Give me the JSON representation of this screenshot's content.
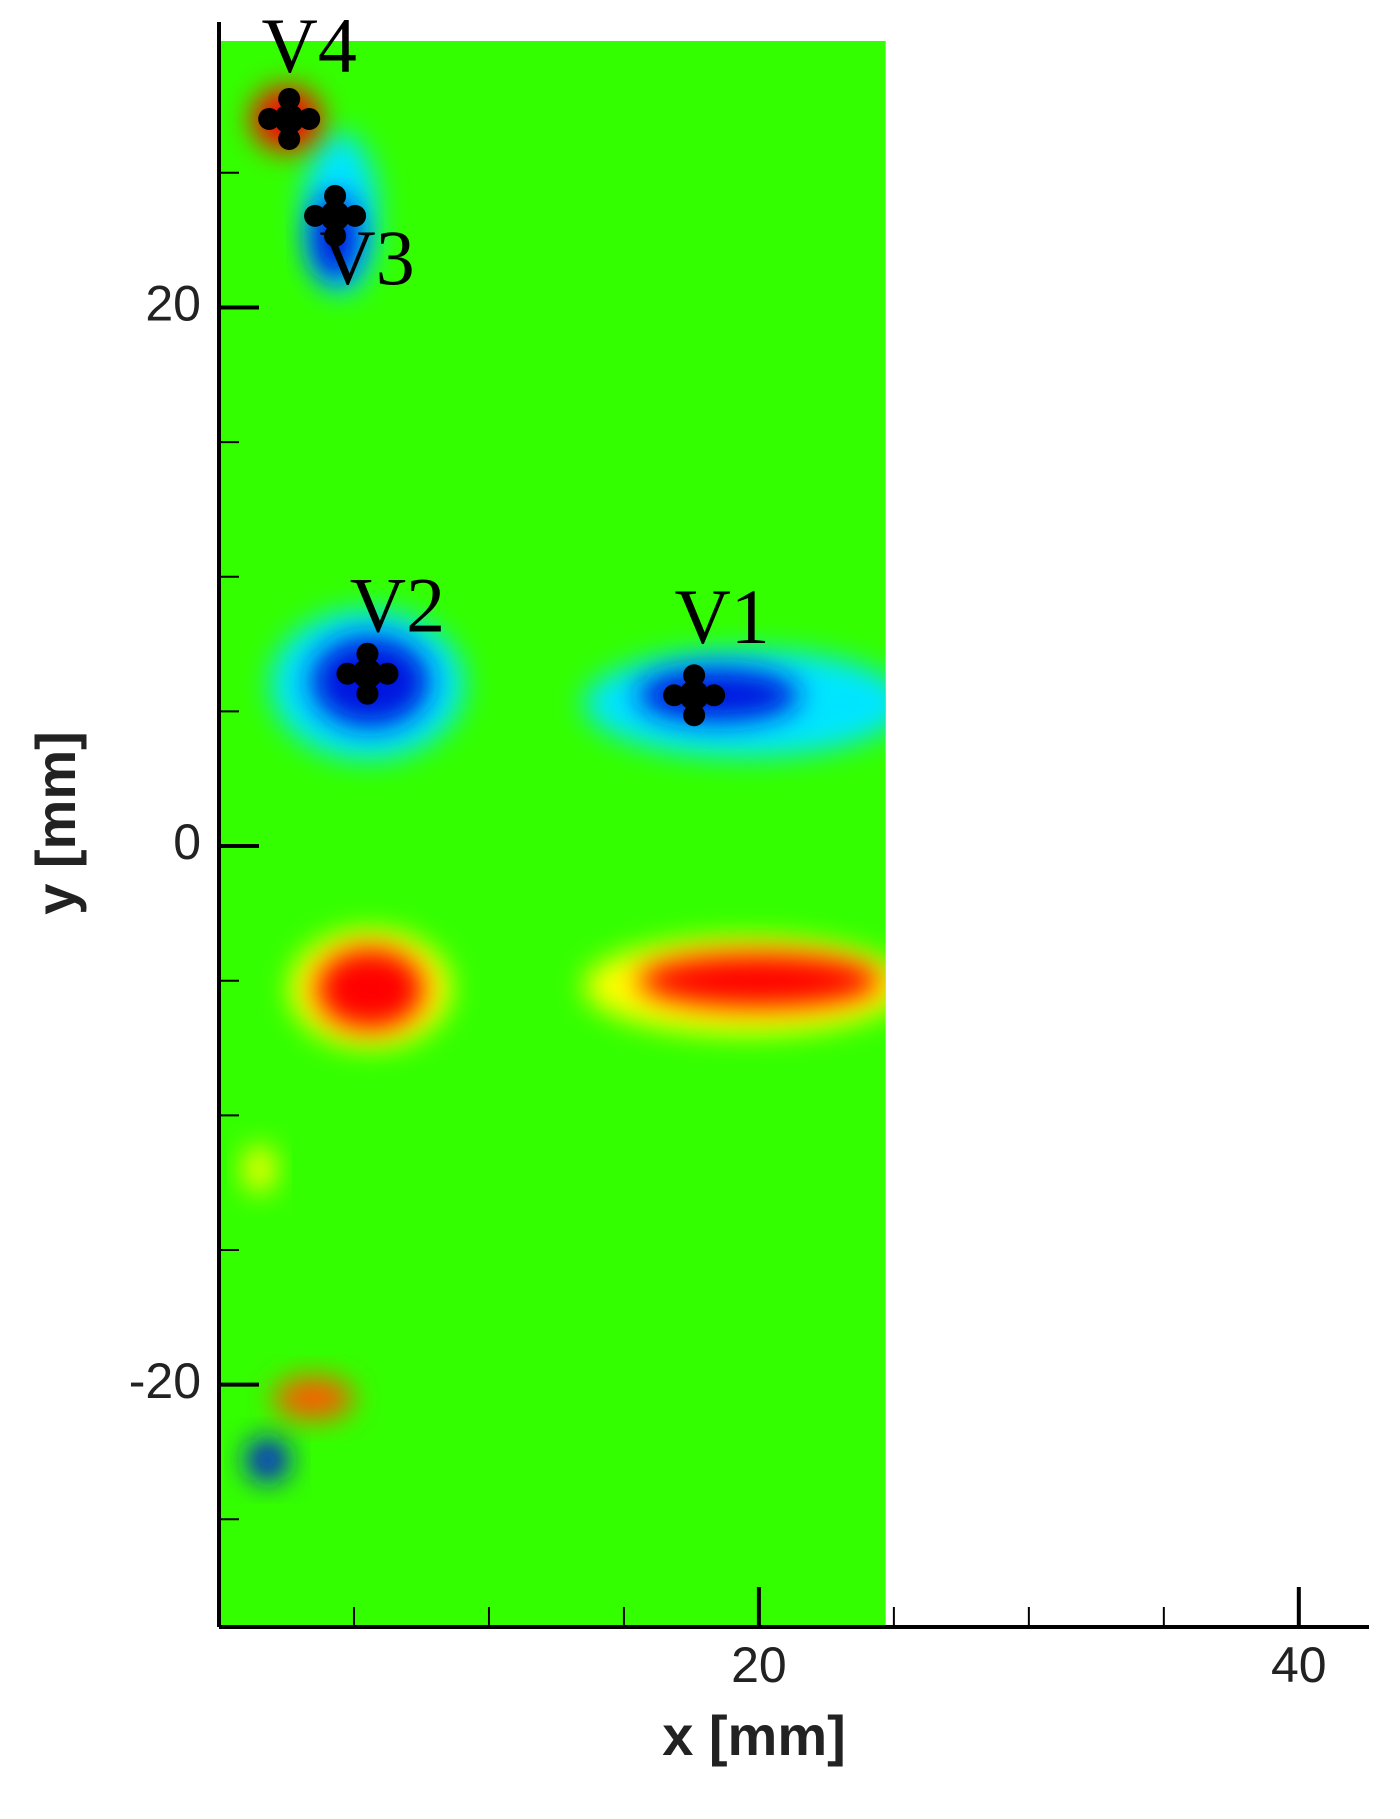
{
  "chart_data": {
    "type": "contour",
    "xlabel": "x [mm]",
    "ylabel": "y [mm]",
    "xlim": [
      0,
      42.6
    ],
    "ylim": [
      -29,
      30.6
    ],
    "xticks": [
      20,
      40
    ],
    "yticks": [
      -20,
      0,
      20
    ],
    "xminorticks": [
      5,
      10,
      15,
      25,
      30,
      35
    ],
    "yminorticks": [
      -25,
      -15,
      -10,
      -5,
      5,
      10,
      15,
      25
    ],
    "field": {
      "xlim": [
        0,
        24.7
      ],
      "ylim": [
        -29,
        29.9
      ],
      "color": "#33ff00"
    },
    "blobs": [
      {
        "x": 5.5,
        "y": 6.0,
        "rx": 3.6,
        "ry": 2.8,
        "color": "#00e5ff"
      },
      {
        "x": 19.5,
        "y": 5.3,
        "rx": 6.0,
        "ry": 2.0,
        "color": "#00e5ff"
      },
      {
        "x": 4.5,
        "y": 23.5,
        "rx": 1.4,
        "ry": 3.0,
        "color": "#00e5ff"
      },
      {
        "x": 5.6,
        "y": 6.1,
        "rx": 2.2,
        "ry": 1.7,
        "color": "#0018e0"
      },
      {
        "x": 18.5,
        "y": 5.6,
        "rx": 3.0,
        "ry": 1.0,
        "color": "#0018e0"
      },
      {
        "x": 4.3,
        "y": 22.6,
        "rx": 0.9,
        "ry": 1.6,
        "color": "#0018e0"
      },
      {
        "x": 1.8,
        "y": -22.8,
        "rx": 0.8,
        "ry": 0.8,
        "color": "#0018e0"
      },
      {
        "x": 5.6,
        "y": -5.3,
        "rx": 3.0,
        "ry": 2.2,
        "color": "#ffff00"
      },
      {
        "x": 19.5,
        "y": -5.2,
        "rx": 6.0,
        "ry": 1.8,
        "color": "#ffff00"
      },
      {
        "x": 1.5,
        "y": -12.0,
        "rx": 0.6,
        "ry": 0.9,
        "color": "#ffff00"
      },
      {
        "x": 5.6,
        "y": -5.3,
        "rx": 2.0,
        "ry": 1.5,
        "color": "#ff0000"
      },
      {
        "x": 20.0,
        "y": -5.0,
        "rx": 4.5,
        "ry": 1.0,
        "color": "#ff0000"
      },
      {
        "x": 3.5,
        "y": -20.5,
        "rx": 1.5,
        "ry": 0.8,
        "color": "#ff5a00"
      },
      {
        "x": 2.5,
        "y": 27.0,
        "rx": 1.3,
        "ry": 1.2,
        "color": "#ff0000"
      }
    ],
    "vortices": {
      "labels": [
        "V1",
        "V2",
        "V3",
        "V4"
      ],
      "x": [
        17.6,
        5.5,
        4.3,
        2.6
      ],
      "y": [
        5.6,
        6.4,
        23.4,
        27.0
      ],
      "color": "#000000"
    }
  }
}
